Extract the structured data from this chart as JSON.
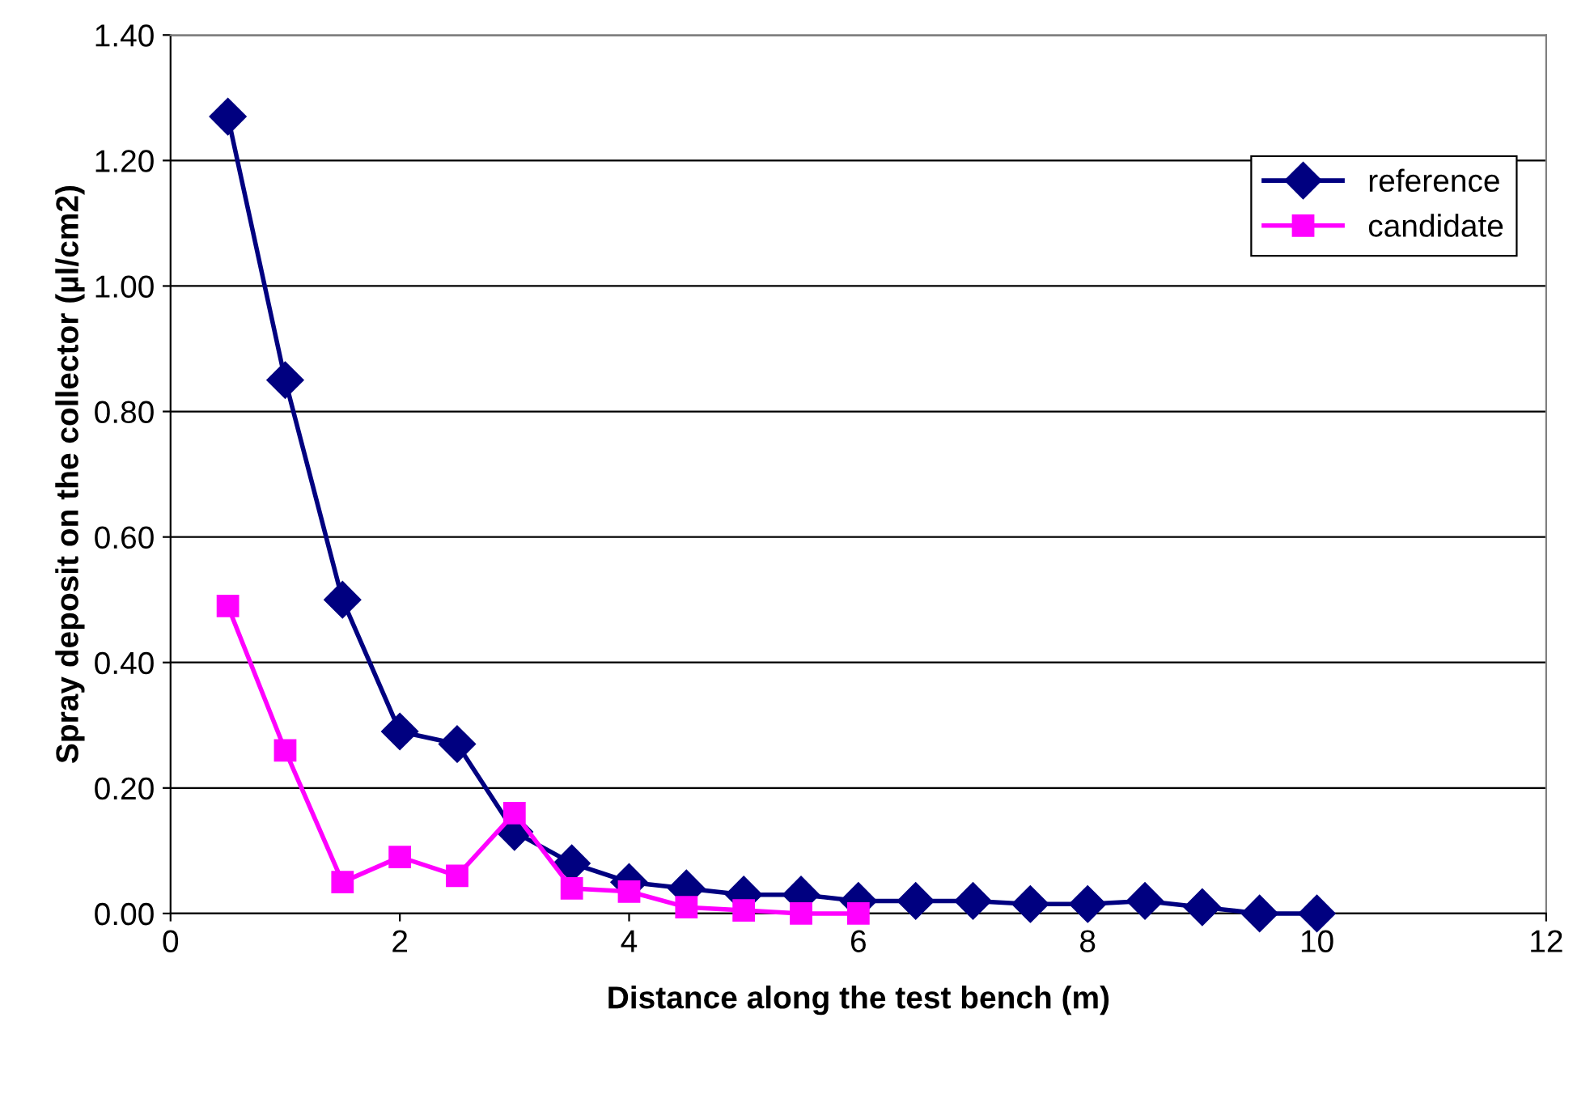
{
  "chart_data": {
    "type": "line",
    "xlabel": "Distance along the test bench (m)",
    "ylabel": "Spray deposit on the collector (µl/cm2)",
    "xlim": [
      0,
      12
    ],
    "xticks": [
      0,
      2,
      4,
      6,
      8,
      10,
      12
    ],
    "ylim": [
      0,
      1.4
    ],
    "yticks": [
      {
        "value": 0,
        "label": "0.00"
      },
      {
        "value": 0.2,
        "label": "0.20"
      },
      {
        "value": 0.4,
        "label": "0.40"
      },
      {
        "value": 0.6,
        "label": "0.60"
      },
      {
        "value": 0.8,
        "label": "0.80"
      },
      {
        "value": 1.0,
        "label": "1.00"
      },
      {
        "value": 1.2,
        "label": "1.20"
      },
      {
        "value": 1.4,
        "label": "1.40"
      }
    ],
    "grid": "y",
    "legend": "top right",
    "line_style": "solid",
    "series": [
      {
        "name": "reference",
        "color": "#000080",
        "marker": "diamond",
        "x": [
          0.5,
          1,
          1.5,
          2,
          2.5,
          3,
          3.5,
          4,
          4.5,
          5,
          5.5,
          6,
          6.5,
          7,
          7.5,
          8,
          8.5,
          9,
          9.5,
          10
        ],
        "values": [
          1.27,
          0.85,
          0.5,
          0.29,
          0.27,
          0.13,
          0.08,
          0.05,
          0.04,
          0.03,
          0.03,
          0.02,
          0.02,
          0.02,
          0.015,
          0.015,
          0.02,
          0.01,
          0.0,
          0.0
        ]
      },
      {
        "name": "candidate",
        "color": "#ff00ff",
        "marker": "square",
        "x": [
          0.5,
          1,
          1.5,
          2,
          2.5,
          3,
          3.5,
          4,
          4.5,
          5,
          5.5,
          6
        ],
        "values": [
          0.49,
          0.26,
          0.05,
          0.09,
          0.06,
          0.16,
          0.04,
          0.035,
          0.01,
          0.005,
          0.0,
          0.0
        ]
      }
    ]
  }
}
